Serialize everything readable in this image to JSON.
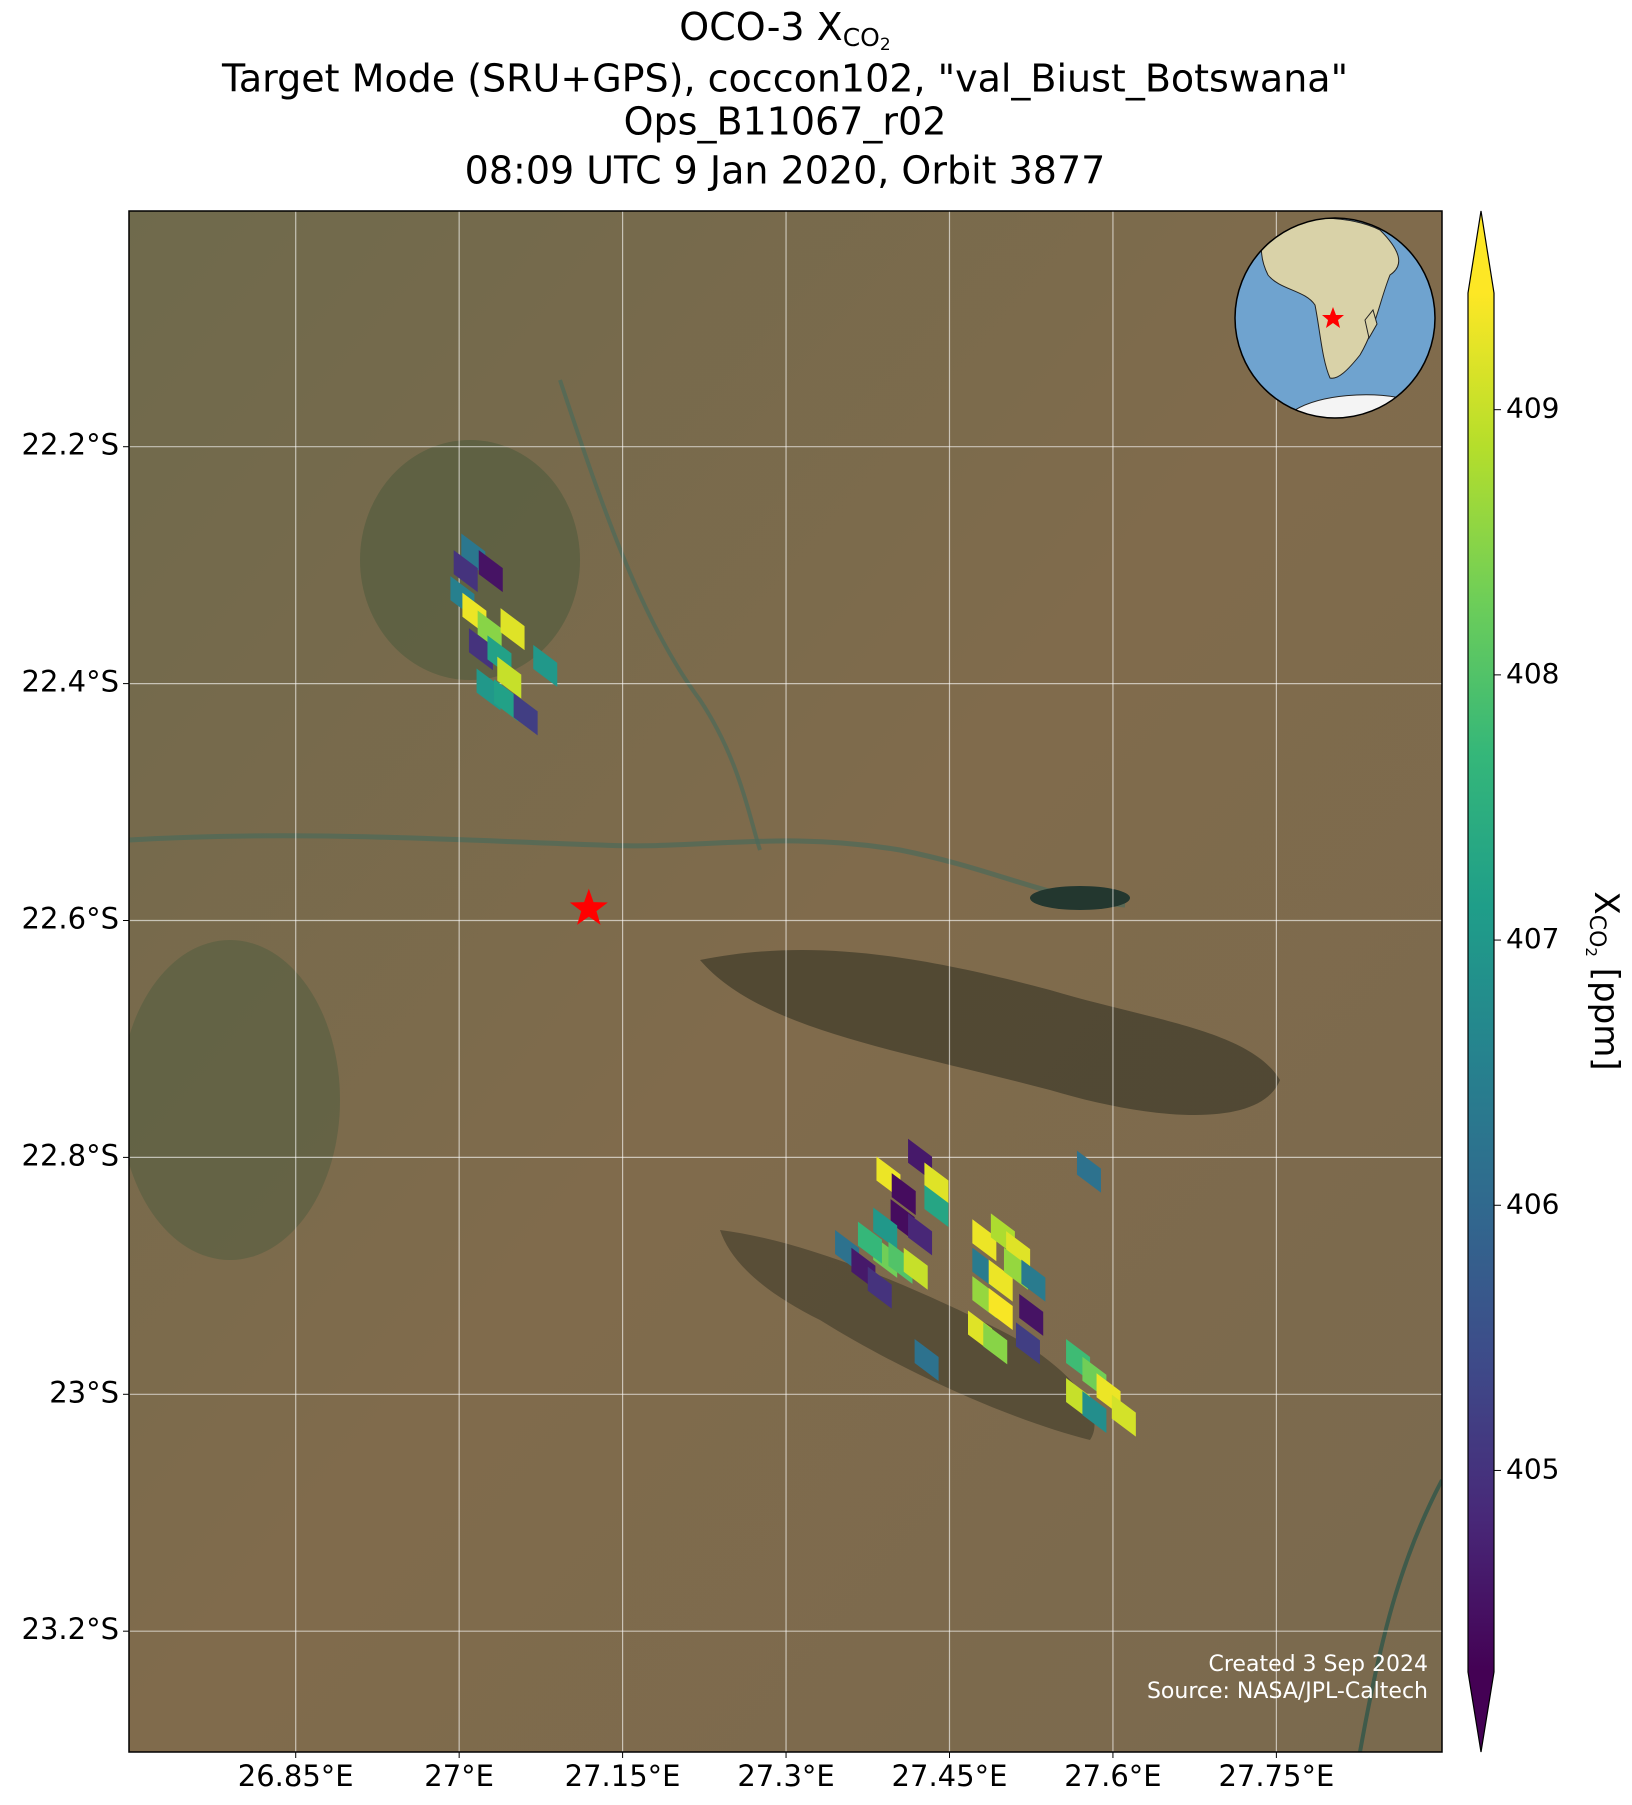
{
  "chart_data": {
    "type": "map",
    "title_lines": [
      [
        "OCO-3 X",
        "CO",
        "2"
      ],
      "Target Mode (SRU+GPS), coccon102, \"val_Biust_Botswana\"",
      "Ops_B11067_r02",
      "08:09 UTC 9 Jan 2020, Orbit 3877"
    ],
    "xlim": [
      26.697,
      27.902
    ],
    "ylim": [
      -23.302,
      -22.001
    ],
    "xticks": [
      {
        "value": 26.85,
        "label": "26.85°E"
      },
      {
        "value": 27.0,
        "label": "27°E"
      },
      {
        "value": 27.15,
        "label": "27.15°E"
      },
      {
        "value": 27.3,
        "label": "27.3°E"
      },
      {
        "value": 27.45,
        "label": "27.45°E"
      },
      {
        "value": 27.6,
        "label": "27.6°E"
      },
      {
        "value": 27.75,
        "label": "27.75°E"
      }
    ],
    "yticks": [
      {
        "value": -22.2,
        "label": "22.2°S"
      },
      {
        "value": -22.4,
        "label": "22.4°S"
      },
      {
        "value": -22.6,
        "label": "22.6°S"
      },
      {
        "value": -22.8,
        "label": "22.8°S"
      },
      {
        "value": -23.0,
        "label": "23°S"
      },
      {
        "value": -23.2,
        "label": "23.2°S"
      }
    ],
    "grid": true,
    "colormap": "viridis",
    "clim": [
      404.24,
      409.44
    ],
    "cticks": [
      405,
      406,
      407,
      408,
      409
    ],
    "colorbar_label": [
      "X",
      "CO",
      "2",
      " [ppm]"
    ],
    "footprints": {
      "lon": [
        27.013,
        27.006,
        27.029,
        27.003,
        27.014,
        27.028,
        27.049,
        27.02,
        27.037,
        27.046,
        27.079,
        27.027,
        27.043,
        27.061,
        27.394,
        27.408,
        27.423,
        27.438,
        27.438,
        27.407,
        27.423,
        27.391,
        27.391,
        27.377,
        27.356,
        27.405,
        27.419,
        27.371,
        27.386,
        27.482,
        27.499,
        27.513,
        27.482,
        27.497,
        27.511,
        27.527,
        27.482,
        27.497,
        27.525,
        27.478,
        27.492,
        27.522,
        27.429,
        27.578,
        27.568,
        27.583,
        27.596,
        27.568,
        27.61,
        27.583
      ],
      "lat": [
        -22.291,
        -22.305,
        -22.305,
        -22.327,
        -22.341,
        -22.356,
        -22.354,
        -22.371,
        -22.377,
        -22.395,
        -22.385,
        -22.405,
        -22.414,
        -22.426,
        -22.817,
        -22.831,
        -22.802,
        -22.822,
        -22.841,
        -22.853,
        -22.865,
        -22.86,
        -22.884,
        -22.872,
        -22.879,
        -22.889,
        -22.894,
        -22.894,
        -22.91,
        -22.87,
        -22.865,
        -22.88,
        -22.894,
        -22.904,
        -22.894,
        -22.904,
        -22.918,
        -22.928,
        -22.933,
        -22.947,
        -22.957,
        -22.957,
        -22.971,
        -22.812,
        -22.971,
        -22.986,
        -23.0,
        -23.004,
        -23.018,
        -23.015
      ],
      "values": [
        406.3,
        405.0,
        404.5,
        406.5,
        409.3,
        408.5,
        409.2,
        405.0,
        407.2,
        409.0,
        407.0,
        407.0,
        407.2,
        405.2,
        409.3,
        404.4,
        404.6,
        409.2,
        407.3,
        404.4,
        404.8,
        407.0,
        408.3,
        407.7,
        406.2,
        408.0,
        409.0,
        404.6,
        405.0,
        409.3,
        408.8,
        409.2,
        406.4,
        409.3,
        408.6,
        406.4,
        408.6,
        409.4,
        404.5,
        409.2,
        408.5,
        405.2,
        406.2,
        406.2,
        407.8,
        408.3,
        409.3,
        409.0,
        409.1,
        406.8
      ]
    },
    "marker": {
      "lon": 27.119,
      "lat": -22.59,
      "color": "#ff0000"
    },
    "credits": [
      "Created 3 Sep 2024",
      "Source: NASA/JPL-Caltech"
    ]
  }
}
